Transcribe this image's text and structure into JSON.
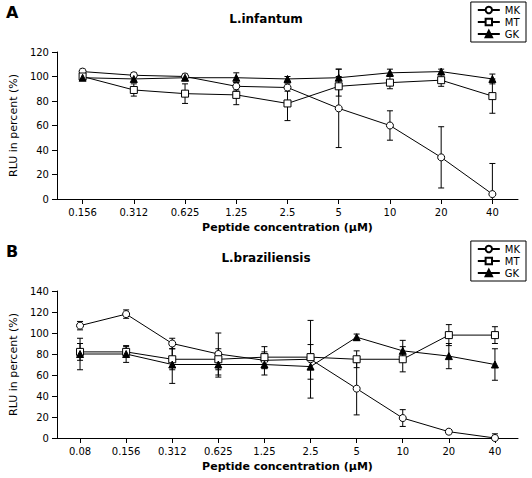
{
  "chart_data": [
    {
      "type": "line",
      "annotation": "A",
      "title": "L.infantum",
      "x_label": "Peptide concentration (µM)",
      "y_label": "RLU in percent (%)",
      "categories": [
        "0.156",
        "0.312",
        "0.625",
        "1.25",
        "2.5",
        "5",
        "10",
        "20",
        "40"
      ],
      "series": [
        {
          "name": "MK",
          "color": "#000000",
          "marker": "open_circle",
          "values": [
            104,
            101,
            100,
            92,
            91,
            74,
            60,
            34,
            4
          ],
          "errors": [
            2,
            2,
            2,
            3,
            3,
            32,
            12,
            25,
            25
          ]
        },
        {
          "name": "MT",
          "color": "#000000",
          "marker": "open_square",
          "values": [
            100,
            89,
            86,
            85,
            78,
            92,
            95,
            97,
            84
          ],
          "errors": [
            2,
            5,
            8,
            8,
            14,
            8,
            5,
            5,
            14
          ]
        },
        {
          "name": "GK",
          "color": "#000000",
          "marker": "triangle",
          "values": [
            99,
            98,
            99,
            99,
            98,
            99,
            103,
            104,
            98
          ],
          "errors": [
            2,
            2,
            2,
            4,
            2,
            7,
            3,
            2,
            4
          ]
        }
      ],
      "ylim": [
        0,
        120
      ],
      "yticks": [
        0,
        20,
        40,
        60,
        80,
        100,
        120
      ],
      "grid": false,
      "legend": "top-right"
    },
    {
      "type": "line",
      "annotation": "B",
      "title": "L.braziliensis",
      "x_label": "Peptide concentration (µM)",
      "y_label": "RLU in percent (%)",
      "categories": [
        "0.08",
        "0.156",
        "0.312",
        "0.625",
        "1.25",
        "2.5",
        "5",
        "10",
        "20",
        "40"
      ],
      "series": [
        {
          "name": "MK",
          "color": "#000000",
          "marker": "open_circle",
          "values": [
            107,
            118,
            90,
            80,
            74,
            75,
            47,
            19,
            6,
            0
          ],
          "errors": [
            4,
            4,
            5,
            20,
            8,
            37,
            25,
            8,
            2,
            4
          ]
        },
        {
          "name": "MT",
          "color": "#000000",
          "marker": "open_square",
          "values": [
            82,
            82,
            75,
            75,
            77,
            77,
            75,
            75,
            98,
            98
          ],
          "errors": [
            8,
            5,
            10,
            10,
            10,
            12,
            8,
            12,
            10,
            8
          ]
        },
        {
          "name": "GK",
          "color": "#000000",
          "marker": "triangle",
          "values": [
            80,
            80,
            70,
            70,
            70,
            68,
            96,
            83,
            78,
            70
          ],
          "errors": [
            15,
            8,
            18,
            12,
            10,
            12,
            3,
            10,
            12,
            15
          ]
        }
      ],
      "ylim": [
        0,
        140
      ],
      "yticks": [
        0,
        20,
        40,
        60,
        80,
        100,
        120,
        140
      ],
      "grid": false,
      "legend": "top-right"
    }
  ]
}
